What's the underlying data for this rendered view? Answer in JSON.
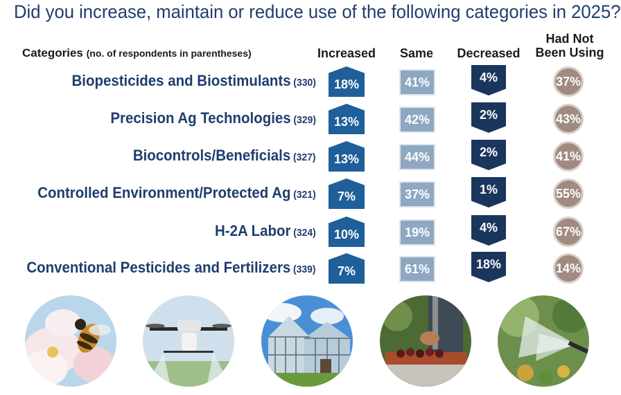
{
  "title": "Did you increase, maintain or reduce use of the following categories in 2025?",
  "headers": {
    "categories": "Categories",
    "categories_note": "(no. of respondents in parentheses)",
    "increased": "Increased",
    "same": "Same",
    "decreased": "Decreased",
    "had_not_line1": "Had Not",
    "had_not_line2": "Been Using"
  },
  "rows": [
    {
      "category": "Biopesticides and Biostimulants",
      "n": "(330)",
      "increased": "18%",
      "same": "41%",
      "decreased": "4%",
      "had_not": "37%"
    },
    {
      "category": "Precision Ag Technologies",
      "n": "(329)",
      "increased": "13%",
      "same": "42%",
      "decreased": "2%",
      "had_not": "43%"
    },
    {
      "category": "Biocontrols/Beneficials",
      "n": "(327)",
      "increased": "13%",
      "same": "44%",
      "decreased": "2%",
      "had_not": "41%"
    },
    {
      "category": "Controlled Environment/Protected Ag",
      "n": "(321)",
      "increased": "7%",
      "same": "37%",
      "decreased": "1%",
      "had_not": "55%"
    },
    {
      "category": "H-2A Labor",
      "n": "(324)",
      "increased": "10%",
      "same": "19%",
      "decreased": "4%",
      "had_not": "67%"
    },
    {
      "category": "Conventional Pesticides and Fertilizers",
      "n": "(339)",
      "increased": "7%",
      "same": "61%",
      "decreased": "18%",
      "had_not": "14%"
    }
  ],
  "photos": [
    "bee-on-flower-photo",
    "agricultural-drone-photo",
    "greenhouse-photo",
    "farm-worker-harvest-photo",
    "crop-sprayer-photo"
  ],
  "chart_data": {
    "type": "table",
    "title": "Did you increase, maintain or reduce use of the following categories in 2025?",
    "columns": [
      "Increased",
      "Same",
      "Decreased",
      "Had Not Been Using"
    ],
    "categories": [
      "Biopesticides and Biostimulants",
      "Precision Ag Technologies",
      "Biocontrols/Beneficials",
      "Controlled Environment/Protected Ag",
      "H-2A Labor",
      "Conventional Pesticides and Fertilizers"
    ],
    "respondents": [
      330,
      329,
      327,
      321,
      324,
      339
    ],
    "series": [
      {
        "name": "Increased",
        "values": [
          18,
          13,
          13,
          7,
          10,
          7
        ]
      },
      {
        "name": "Same",
        "values": [
          41,
          42,
          44,
          37,
          19,
          61
        ]
      },
      {
        "name": "Decreased",
        "values": [
          4,
          2,
          2,
          1,
          4,
          18
        ]
      },
      {
        "name": "Had Not Been Using",
        "values": [
          37,
          43,
          41,
          55,
          67,
          14
        ]
      }
    ],
    "colors": {
      "increased": "#1f5f9a",
      "same": "#8fa8c2",
      "decreased": "#1b365d",
      "had_not": "#a08b80",
      "title": "#1f3d6e"
    }
  }
}
